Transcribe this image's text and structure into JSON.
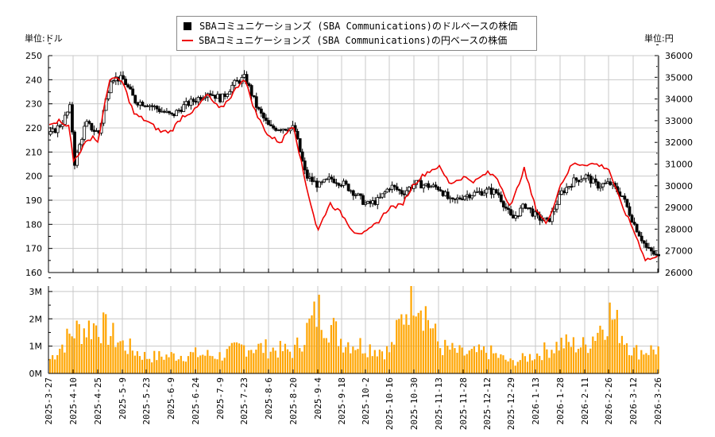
{
  "header": {
    "unit_left": "単位:ドル",
    "unit_right": "単位:円"
  },
  "legend": {
    "items": [
      {
        "label": "SBAコミュニケーションズ (SBA Communications)のドルベースの株価",
        "marker": "black-square",
        "color": "#000000"
      },
      {
        "label": "SBAコミュニケーションズ (SBA Communications)の円ベースの株価",
        "marker": "red-line",
        "color": "#ee0000"
      }
    ]
  },
  "chart_data": [
    {
      "type": "candlestick+line",
      "title": "",
      "xlabel": "",
      "ylabel_left": "単位:ドル",
      "ylabel_right": "単位:円",
      "ylim_left": [
        160,
        250
      ],
      "ylim_right": [
        26000,
        36000
      ],
      "yticks_left": [
        160,
        170,
        180,
        190,
        200,
        210,
        220,
        230,
        240,
        250
      ],
      "yticks_right": [
        26000,
        27000,
        28000,
        29000,
        30000,
        31000,
        32000,
        33000,
        34000,
        35000,
        36000
      ],
      "grid": true,
      "legend_position": "top-center",
      "x_tick_labels": [
        "2025-3-27",
        "2025-4-10",
        "2025-4-25",
        "2025-5-9",
        "2025-5-23",
        "2025-6-9",
        "2025-6-24",
        "2025-7-9",
        "2025-7-23",
        "2025-8-6",
        "2025-8-20",
        "2025-9-4",
        "2025-9-18",
        "2025-10-2",
        "2025-10-16",
        "2025-10-30",
        "2025-11-13",
        "2025-11-28",
        "2025-12-12",
        "2025-12-29",
        "2026-1-13",
        "2026-1-28",
        "2026-2-11",
        "2026-2-26",
        "2026-3-12",
        "2026-3-26"
      ],
      "series": [
        {
          "name": "USD close (approx)",
          "color": "#000000",
          "x": [
            "2025-3-27",
            "2025-4-3",
            "2025-4-8",
            "2025-4-10",
            "2025-4-17",
            "2025-4-22",
            "2025-4-25",
            "2025-5-2",
            "2025-5-9",
            "2025-5-16",
            "2025-5-23",
            "2025-6-2",
            "2025-6-9",
            "2025-6-16",
            "2025-6-24",
            "2025-7-1",
            "2025-7-9",
            "2025-7-16",
            "2025-7-23",
            "2025-7-30",
            "2025-8-6",
            "2025-8-13",
            "2025-8-20",
            "2025-8-27",
            "2025-9-4",
            "2025-9-11",
            "2025-9-18",
            "2025-9-25",
            "2025-10-2",
            "2025-10-9",
            "2025-10-16",
            "2025-10-23",
            "2025-10-30",
            "2025-11-6",
            "2025-11-13",
            "2025-11-20",
            "2025-11-28",
            "2025-12-5",
            "2025-12-12",
            "2025-12-19",
            "2025-12-29",
            "2026-1-6",
            "2026-1-13",
            "2026-1-20",
            "2026-1-28",
            "2026-2-4",
            "2026-2-11",
            "2026-2-18",
            "2026-2-26",
            "2026-3-5",
            "2026-3-12",
            "2026-3-19",
            "2026-3-26"
          ],
          "values": [
            217,
            222,
            229,
            205,
            222,
            219,
            218,
            241,
            240,
            231,
            230,
            227,
            225,
            229,
            232,
            235,
            232,
            238,
            241,
            228,
            220,
            220,
            220,
            200,
            196,
            199,
            197,
            193,
            188,
            190,
            196,
            193,
            197,
            196,
            195,
            189,
            192,
            193,
            194,
            193,
            182,
            188,
            183,
            181,
            193,
            198,
            200,
            196,
            197,
            192,
            180,
            170,
            166
          ]
        },
        {
          "name": "JPY close (approx)",
          "color": "#ee0000",
          "x": [
            "2025-3-27",
            "2025-4-3",
            "2025-4-8",
            "2025-4-10",
            "2025-4-17",
            "2025-4-22",
            "2025-4-25",
            "2025-5-2",
            "2025-5-9",
            "2025-5-16",
            "2025-5-23",
            "2025-6-2",
            "2025-6-9",
            "2025-6-16",
            "2025-6-24",
            "2025-7-1",
            "2025-7-9",
            "2025-7-16",
            "2025-7-23",
            "2025-7-30",
            "2025-8-6",
            "2025-8-13",
            "2025-8-20",
            "2025-8-27",
            "2025-9-4",
            "2025-9-11",
            "2025-9-18",
            "2025-9-25",
            "2025-10-2",
            "2025-10-9",
            "2025-10-16",
            "2025-10-23",
            "2025-10-30",
            "2025-11-6",
            "2025-11-13",
            "2025-11-20",
            "2025-11-28",
            "2025-12-5",
            "2025-12-12",
            "2025-12-19",
            "2025-12-29",
            "2026-1-6",
            "2026-1-13",
            "2026-1-20",
            "2026-1-28",
            "2026-2-4",
            "2026-2-11",
            "2026-2-18",
            "2026-2-26",
            "2026-3-5",
            "2026-3-12",
            "2026-3-19",
            "2026-3-26"
          ],
          "values": [
            32900,
            33000,
            32700,
            31100,
            31900,
            32300,
            32000,
            35000,
            34800,
            33300,
            33000,
            32500,
            32500,
            33200,
            33500,
            34200,
            33500,
            34200,
            35000,
            33300,
            32300,
            32000,
            32900,
            30300,
            27900,
            29200,
            28700,
            27900,
            27800,
            28300,
            29000,
            29100,
            30100,
            30600,
            30900,
            30100,
            30400,
            30200,
            30600,
            30400,
            29000,
            30800,
            29000,
            28200,
            30000,
            31000,
            31000,
            31000,
            30800,
            29200,
            28000,
            26600,
            26700
          ]
        }
      ]
    },
    {
      "type": "bar",
      "title": "",
      "xlabel": "",
      "ylabel": "Volume",
      "ylim": [
        0,
        3200000
      ],
      "yticks": [
        "0M",
        "1M",
        "2M",
        "3M"
      ],
      "grid": true,
      "color": "#ffa500",
      "categories": [
        "2025-3-27",
        "2025-4-10",
        "2025-4-25",
        "2025-5-9",
        "2025-5-23",
        "2025-6-9",
        "2025-6-24",
        "2025-7-9",
        "2025-7-23",
        "2025-8-6",
        "2025-8-20",
        "2025-9-4",
        "2025-9-18",
        "2025-10-2",
        "2025-10-16",
        "2025-10-30",
        "2025-11-13",
        "2025-11-28",
        "2025-12-12",
        "2025-12-29",
        "2026-1-13",
        "2026-1-28",
        "2026-2-11",
        "2026-2-26",
        "2026-3-12",
        "2026-3-26"
      ],
      "values": [
        500000,
        1550000,
        1800000,
        1050000,
        600000,
        650000,
        700000,
        650000,
        1000000,
        900000,
        800000,
        2300000,
        1200000,
        1000000,
        800000,
        3300000,
        1000000,
        700000,
        800000,
        400000,
        700000,
        1100000,
        1000000,
        2200000,
        800000,
        900000
      ]
    }
  ],
  "volume_axis": {
    "labels": [
      "3M",
      "2M",
      "1M",
      "0M"
    ]
  }
}
